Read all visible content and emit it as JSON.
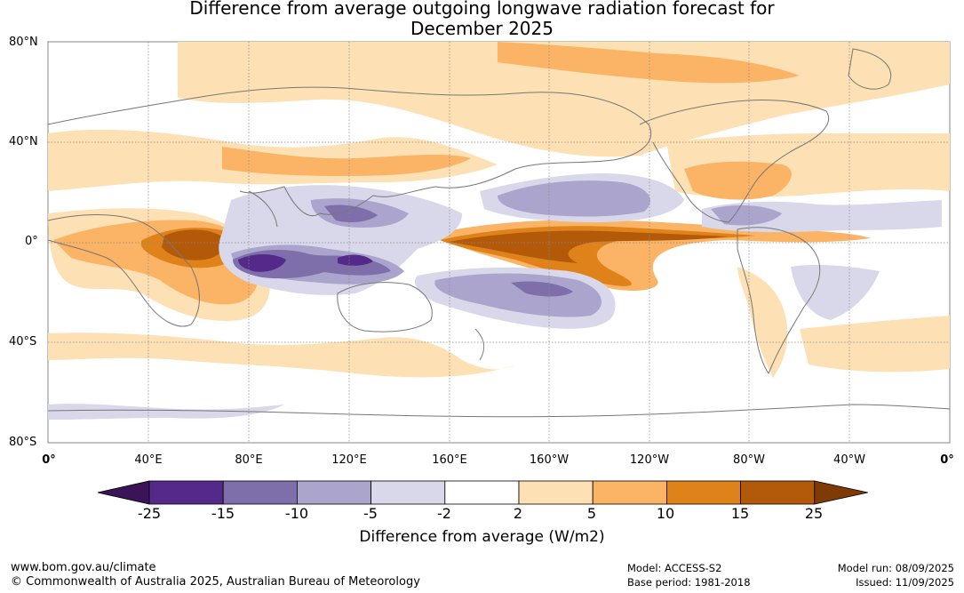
{
  "title_line1": "Difference from average outgoing longwave radiation forecast for",
  "title_line2": "December 2025",
  "lat_labels": [
    "80°N",
    "40°N",
    "0°",
    "40°S",
    "80°S"
  ],
  "lon_labels": [
    "0°",
    "40°E",
    "80°E",
    "120°E",
    "160°E",
    "160°W",
    "120°W",
    "80°W",
    "40°W",
    "0°"
  ],
  "colorbar": {
    "ticks": [
      "-25",
      "-15",
      "-10",
      "-5",
      "-2",
      "2",
      "5",
      "10",
      "15",
      "25"
    ],
    "colors": [
      "#3b1457",
      "#55298a",
      "#7e6eaa",
      "#aba4cc",
      "#d8d8ea",
      "#ffffff",
      "#fde0b3",
      "#fbb366",
      "#e0821a",
      "#b35a0a",
      "#7f3a05"
    ],
    "title": "Difference from average (W/m2)"
  },
  "footer": {
    "url": "www.bom.gov.au/climate",
    "copyright": "© Commonwealth of Australia 2025, Australian Bureau of Meteorology",
    "model": "Model: ACCESS-S2",
    "base_period": "Base period: 1981-2018",
    "model_run": "Model run: 08/09/2025",
    "issued": "Issued: 11/09/2025"
  }
}
